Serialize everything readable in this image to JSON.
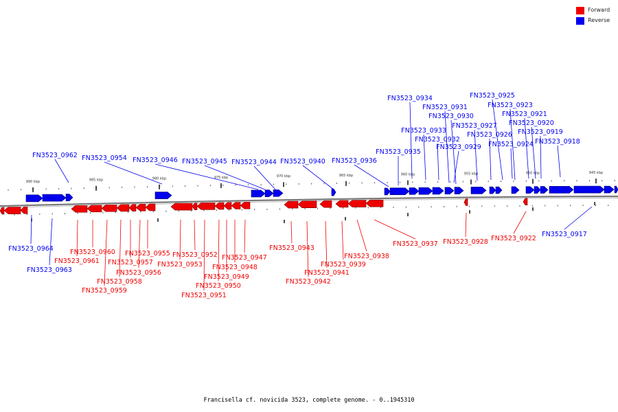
{
  "caption": "Francisella cf. novicida 3523, complete genome. - 0..1945310",
  "legend": [
    {
      "label": "Forward",
      "color": "#ee0000"
    },
    {
      "label": "Reverse",
      "color": "#0000ee"
    }
  ],
  "colors": {
    "forward": "#ee0000",
    "reverse": "#0000ee",
    "backbone": "#888888"
  },
  "ruler_labels": [
    "990 kbp",
    "985 kbp",
    "980 kbp",
    "975 kbp",
    "970 kbp",
    "965 kbp",
    "960 kbp",
    "955 kbp",
    "950 kbp",
    "945 kbp"
  ],
  "reverse_genes": [
    "FN3523_0962",
    "FN3523_0954",
    "FN3523_0946",
    "FN3523_0945",
    "FN3523_0944",
    "FN3523_0940",
    "FN3523_0936",
    "FN3523_0935",
    "FN3523_0934",
    "FN3523_0933",
    "FN3523_0931",
    "FN3523_0930",
    "FN3523_0932",
    "FN3523_0929",
    "FN3523_0927",
    "FN3523_0926",
    "FN3523_0925",
    "FN3523_0924",
    "FN3523_0923",
    "FN3523_0921",
    "FN3523_0920",
    "FN3523_0919",
    "FN3523_0918",
    "FN3523_0964",
    "FN3523_0963",
    "FN3523_0917"
  ],
  "forward_genes": [
    "FN3523_0960",
    "FN3523_0961",
    "FN3523_0957",
    "FN3523_0958",
    "FN3523_0959",
    "FN3523_0955",
    "FN3523_0956",
    "FN3523_0952",
    "FN3523_0953",
    "FN3523_0951",
    "FN3523_0950",
    "FN3523_0949",
    "FN3523_0948",
    "FN3523_0947",
    "FN3523_0943",
    "FN3523_0942",
    "FN3523_0941",
    "FN3523_0939",
    "FN3523_0938",
    "FN3523_0937",
    "FN3523_0928",
    "FN3523_0922"
  ]
}
